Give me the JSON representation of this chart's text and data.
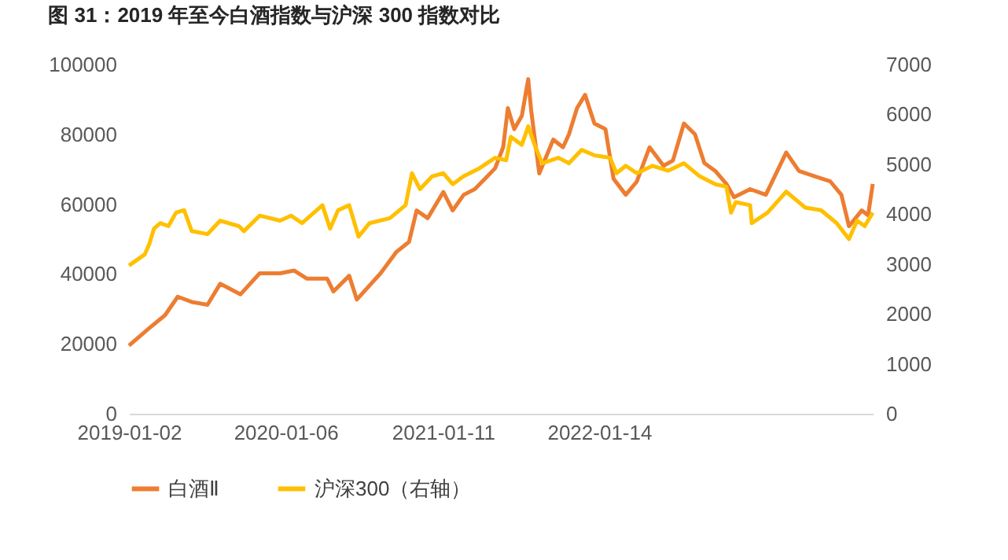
{
  "chart_data": {
    "type": "line",
    "title": "图 31：2019 年至今白酒指数与沪深 300 指数对比",
    "xlim": [
      "2019-01-02",
      "2023-10-21"
    ],
    "xticks": [
      "2019-01-02",
      "2020-01-06",
      "2021-01-11",
      "2022-01-14"
    ],
    "ylim": [
      0,
      100000
    ],
    "yticks": [
      0,
      20000,
      40000,
      60000,
      80000,
      100000
    ],
    "y2lim": [
      0,
      7000
    ],
    "y2ticks": [
      0,
      1000,
      2000,
      3000,
      4000,
      5000,
      6000,
      7000
    ],
    "legend": "bottom",
    "series": [
      {
        "name": "白酒Ⅱ",
        "color": "#ed7d31",
        "x": [
          "2019-01-02",
          "2019-02-19",
          "2019-03-28",
          "2019-04-27",
          "2019-05-30",
          "2019-07-06",
          "2019-08-05",
          "2019-09-22",
          "2019-11-06",
          "2019-12-24",
          "2020-01-26",
          "2020-02-25",
          "2020-04-13",
          "2020-04-28",
          "2020-06-04",
          "2020-06-22",
          "2020-08-17",
          "2020-09-23",
          "2020-10-23",
          "2020-11-10",
          "2020-12-06",
          "2021-01-12",
          "2021-02-03",
          "2021-03-01",
          "2021-03-27",
          "2021-04-26",
          "2021-05-14",
          "2021-06-02",
          "2021-06-13",
          "2021-06-28",
          "2021-07-16",
          "2021-07-31",
          "2021-08-07",
          "2021-08-26",
          "2021-09-28",
          "2021-10-21",
          "2021-11-04",
          "2021-11-23",
          "2021-12-12",
          "2022-01-03",
          "2022-01-29",
          "2022-02-17",
          "2022-03-18",
          "2022-04-13",
          "2022-05-13",
          "2022-06-15",
          "2022-07-07",
          "2022-08-02",
          "2022-08-28",
          "2022-09-19",
          "2022-10-15",
          "2022-11-10",
          "2022-11-28",
          "2023-01-05",
          "2023-02-11",
          "2023-03-31",
          "2023-04-30",
          "2023-06-06",
          "2023-07-13",
          "2023-08-08",
          "2023-08-26",
          "2023-09-25",
          "2023-10-10",
          "2023-10-21"
        ],
        "values": [
          19500,
          24500,
          28200,
          33500,
          32000,
          31200,
          37200,
          34200,
          40200,
          40200,
          41000,
          38700,
          38700,
          35000,
          39500,
          32700,
          40200,
          46300,
          49200,
          58200,
          56000,
          63500,
          58200,
          62700,
          64300,
          68000,
          70300,
          76300,
          87500,
          81500,
          85300,
          95800,
          86800,
          68800,
          78500,
          76300,
          80000,
          87500,
          91300,
          83100,
          81500,
          67300,
          62700,
          66500,
          76300,
          71000,
          72500,
          83100,
          80000,
          71800,
          69500,
          65800,
          62000,
          64300,
          62700,
          74800,
          69500,
          68000,
          66500,
          62700,
          53700,
          58200,
          56800,
          65800
        ]
      },
      {
        "name": "沪深300（右轴）",
        "color": "#ffc000",
        "axis": "y2",
        "x": [
          "2019-01-02",
          "2019-02-08",
          "2019-02-19",
          "2019-03-02",
          "2019-03-17",
          "2019-04-05",
          "2019-04-23",
          "2019-05-12",
          "2019-05-30",
          "2019-07-06",
          "2019-08-05",
          "2019-09-18",
          "2019-09-30",
          "2019-11-06",
          "2019-12-24",
          "2020-01-19",
          "2020-02-14",
          "2020-04-02",
          "2020-04-20",
          "2020-05-09",
          "2020-06-04",
          "2020-06-26",
          "2020-07-22",
          "2020-09-08",
          "2020-10-15",
          "2020-10-30",
          "2020-11-18",
          "2020-12-17",
          "2021-01-12",
          "2021-02-03",
          "2021-03-01",
          "2021-04-07",
          "2021-05-14",
          "2021-06-09",
          "2021-06-20",
          "2021-07-16",
          "2021-07-31",
          "2021-08-15",
          "2021-09-02",
          "2021-10-10",
          "2021-11-04",
          "2021-12-04",
          "2022-01-03",
          "2022-02-09",
          "2022-02-24",
          "2022-03-18",
          "2022-04-13",
          "2022-05-20",
          "2022-06-26",
          "2022-08-02",
          "2022-09-08",
          "2022-10-15",
          "2022-11-10",
          "2022-11-21",
          "2022-12-02",
          "2023-01-05",
          "2023-01-09",
          "2023-02-15",
          "2023-03-31",
          "2023-05-15",
          "2023-06-21",
          "2023-07-28",
          "2023-08-26",
          "2023-09-14",
          "2023-10-02",
          "2023-10-21"
        ],
        "values": [
          2970,
          3190,
          3400,
          3710,
          3820,
          3760,
          4030,
          4080,
          3660,
          3600,
          3870,
          3760,
          3660,
          3970,
          3870,
          3970,
          3820,
          4180,
          3710,
          4080,
          4180,
          3550,
          3820,
          3920,
          4180,
          4820,
          4500,
          4760,
          4820,
          4600,
          4760,
          4920,
          5130,
          5080,
          5550,
          5390,
          5760,
          5390,
          5020,
          5130,
          5020,
          5290,
          5180,
          5130,
          4820,
          4970,
          4820,
          4970,
          4870,
          5020,
          4760,
          4600,
          4550,
          4030,
          4240,
          4180,
          3820,
          4030,
          4450,
          4130,
          4080,
          3820,
          3500,
          3870,
          3760,
          4030
        ]
      }
    ]
  }
}
